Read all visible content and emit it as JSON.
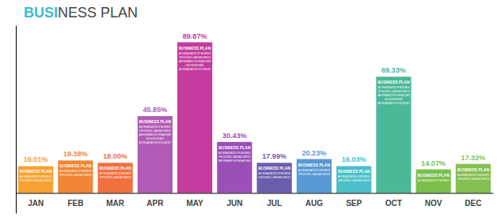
{
  "chart_data": {
    "type": "bar",
    "title": [
      {
        "text": "BUSI",
        "color": "#3DBDCE"
      },
      {
        "text": "NESS PLAN",
        "color": "#444444"
      }
    ],
    "categories": [
      "JAN",
      "FEB",
      "MAR",
      "APR",
      "MAY",
      "JUN",
      "JUL",
      "AUG",
      "SEP",
      "OCT",
      "NOV",
      "DEC"
    ],
    "values": [
      16.01,
      19.38,
      18.0,
      45.85,
      89.87,
      30.43,
      17.99,
      20.23,
      16.03,
      69.33,
      14.07,
      17.32
    ],
    "value_labels": [
      "16.01%",
      "19.38%",
      "18.00%",
      "45.85%",
      "89.87%",
      "30.43%",
      "17.99%",
      "20.23%",
      "16.03%",
      "69.33%",
      "14.07%",
      "17.32%"
    ],
    "colors": [
      "#F7A233",
      "#F08535",
      "#F07040",
      "#B05BB5",
      "#C43B9E",
      "#9B50B8",
      "#6B5DAE",
      "#5899D5",
      "#4BBFC8",
      "#4BB89A",
      "#7BBF4A",
      "#85C052"
    ],
    "ylim": [
      -12,
      100
    ],
    "data_labels": true,
    "tick_labels": "x",
    "grid": false,
    "annotations": [
      [
        "BUSINESS PLAN",
        "AN ORGANIZATION OF BUSINESS",
        "OFFICE DESKS, LEASE AND SERVICE"
      ],
      [
        "BUSINESS PLAN",
        "AN ORGANIZATION OF BUSINESS",
        "OFFICE DESKS, LEASE AND SERVICE"
      ],
      [
        "BUSINESS PLAN",
        "AN ORGANIZATION OF BUSINESS",
        "OFFICE DESKS, LEASE AND SERVICE"
      ],
      [
        "BUSINESS PLAN",
        "AN ORGANIZATION OF BUSINESS",
        "OFFICE DESKS, LEASE AND SERVICE",
        "ARE PREPARED FOR THE ANOTHER",
        "ON FOR MONEY",
        "AN ORGANIZATION OF ECONOMY"
      ],
      [
        "BUSINESS PLAN",
        "AN ORGANIZATION OF BUSINESS",
        "OFFICE DESKS, LEASE AND SERVICE",
        "ARE PREPARED FOR THE ANOTHER",
        "ON FOR MONEY",
        "AN ORGANIZATION OF ECONOMY"
      ],
      [
        "BUSINESS PLAN",
        "AN ORGANIZATION OF BUSINESS",
        "OFFICE DESKS, LEASE AND SERVICE",
        "ARE PREPARED FOR THE ANOTHER"
      ],
      [
        "BUSINESS PLAN",
        "AN ORGANIZATION OF BUSINESS",
        "OFFICE DESKS, LEASE AND SERVICE"
      ],
      [
        "BUSINESS PLAN",
        "AN ORGANIZATION OF BUSINESS",
        "OFFICE DESKS, LEASE AND SERVICE"
      ],
      [
        "BUSINESS PLAN",
        "AN ORGANIZATION OF BUSINESS",
        "OFFICE DESKS, LEASE AND SERVICE"
      ],
      [
        "BUSINESS PLAN",
        "AN ORGANIZATION OF BUSINESS",
        "OFFICE DESKS, LEASE AND SERVICE",
        "ARE PREPARED FOR THE ANOTHER",
        "ON FOR MONEY",
        "AN ORGANIZATION OF ECONOMY"
      ],
      [
        "BUSINESS PLAN",
        "AN ORGANIZATION OF BUSINESS"
      ],
      [
        "BUSINESS PLAN",
        "AN ORGANIZATION OF BUSINESS",
        "OFFICE DESKS, LEASE AND SERVICE"
      ]
    ]
  }
}
